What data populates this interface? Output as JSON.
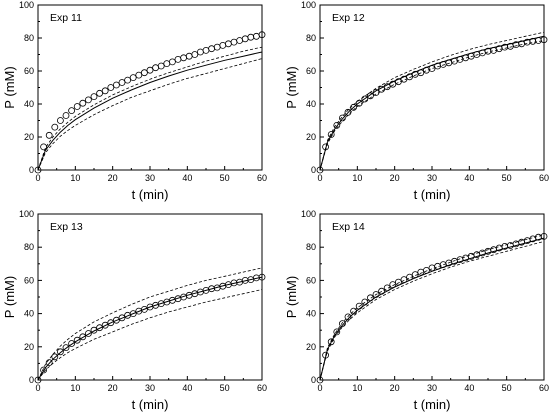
{
  "chart_data": [
    {
      "type": "scatter",
      "panel_label": "Exp 11",
      "xlabel": "t (min)",
      "ylabel": "P (mM)",
      "xlim": [
        0,
        60
      ],
      "ylim": [
        0,
        100
      ],
      "xticks": [
        0,
        10,
        20,
        30,
        40,
        50,
        60
      ],
      "yticks": [
        0,
        20,
        40,
        60,
        80,
        100
      ],
      "observed": {
        "x": [
          0,
          1.5,
          3,
          4.5,
          6,
          7.5,
          9,
          10.5,
          12,
          13.5,
          15,
          16.5,
          18,
          19.5,
          21,
          22.5,
          24,
          25.5,
          27,
          28.5,
          30,
          31.5,
          33,
          34.5,
          36,
          37.5,
          39,
          40.5,
          42,
          43.5,
          45,
          46.5,
          48,
          49.5,
          51,
          52.5,
          54,
          55.5,
          57,
          58.5,
          60
        ],
        "y": [
          0,
          14,
          21,
          26,
          30,
          33,
          36,
          38.5,
          40.5,
          42.5,
          44.5,
          46.5,
          48,
          50,
          51.5,
          53,
          54.5,
          56,
          57.5,
          59,
          60.5,
          62,
          63,
          64.5,
          65.5,
          67,
          68,
          69,
          70,
          71.5,
          72.5,
          73.5,
          74.5,
          75.5,
          76.5,
          77.5,
          78.5,
          79.5,
          80.5,
          81,
          82
        ]
      },
      "fit": {
        "x": [
          0,
          2,
          4,
          6,
          8,
          10,
          15,
          20,
          25,
          30,
          35,
          40,
          45,
          50,
          55,
          60
        ],
        "y": [
          0,
          12,
          18,
          23,
          27,
          30.5,
          37.5,
          43.5,
          48.5,
          53,
          57,
          60.5,
          63.5,
          66.5,
          69,
          71.5
        ]
      },
      "band_upper": {
        "x": [
          0,
          2,
          4,
          6,
          8,
          10,
          15,
          20,
          25,
          30,
          35,
          40,
          45,
          50,
          55,
          60
        ],
        "y": [
          0,
          13.5,
          20,
          25,
          29,
          32.5,
          39.5,
          45.5,
          50.5,
          55,
          59,
          62.5,
          66,
          69,
          72,
          74.5
        ]
      },
      "band_lower": {
        "x": [
          0,
          2,
          4,
          6,
          8,
          10,
          15,
          20,
          25,
          30,
          35,
          40,
          45,
          50,
          55,
          60
        ],
        "y": [
          0,
          10.5,
          16,
          20.5,
          24,
          27,
          33.5,
          39,
          44,
          48,
          52,
          55.5,
          58.5,
          61.5,
          64.5,
          67.5
        ]
      }
    },
    {
      "type": "scatter",
      "panel_label": "Exp 12",
      "xlabel": "t (min)",
      "ylabel": "P (mM)",
      "xlim": [
        0,
        60
      ],
      "ylim": [
        0,
        100
      ],
      "xticks": [
        0,
        10,
        20,
        30,
        40,
        50,
        60
      ],
      "yticks": [
        0,
        20,
        40,
        60,
        80,
        100
      ],
      "observed": {
        "x": [
          0,
          1.5,
          3,
          4.5,
          6,
          7.5,
          9,
          10.5,
          12,
          13.5,
          15,
          16.5,
          18,
          19.5,
          21,
          22.5,
          24,
          25.5,
          27,
          28.5,
          30,
          31.5,
          33,
          34.5,
          36,
          37.5,
          39,
          40.5,
          42,
          43.5,
          45,
          46.5,
          48,
          49.5,
          51,
          52.5,
          54,
          55.5,
          57,
          58.5,
          60
        ],
        "y": [
          0,
          14,
          21.5,
          27,
          31.5,
          35,
          38,
          40.5,
          43,
          45,
          47,
          49,
          50.5,
          52,
          53.5,
          55,
          56.5,
          58,
          59,
          60.5,
          61.5,
          63,
          64,
          65,
          66,
          67,
          68,
          69,
          70,
          71,
          72,
          72.5,
          73.5,
          74.5,
          75,
          76,
          76.5,
          77.5,
          78,
          78.5,
          79
        ]
      },
      "fit": {
        "x": [
          0,
          2,
          4,
          6,
          8,
          10,
          15,
          20,
          25,
          30,
          35,
          40,
          45,
          50,
          55,
          60
        ],
        "y": [
          0,
          17,
          25,
          31,
          36,
          40,
          48,
          54,
          59,
          63.5,
          67,
          70.5,
          73.5,
          76,
          78.5,
          81
        ]
      },
      "band_upper": {
        "x": [
          0,
          2,
          4,
          6,
          8,
          10,
          15,
          20,
          25,
          30,
          35,
          40,
          45,
          50,
          55,
          60
        ],
        "y": [
          0,
          18,
          26.5,
          32.5,
          37.5,
          41.5,
          49.5,
          56,
          61,
          65.5,
          69.5,
          73,
          76,
          78.5,
          81,
          83.5
        ]
      },
      "band_lower": {
        "x": [
          0,
          2,
          4,
          6,
          8,
          10,
          15,
          20,
          25,
          30,
          35,
          40,
          45,
          50,
          55,
          60
        ],
        "y": [
          0,
          16,
          24,
          29.5,
          34.5,
          38.5,
          46,
          52,
          57,
          61.5,
          65,
          68.5,
          71.5,
          74,
          76.5,
          78.5
        ]
      }
    },
    {
      "type": "scatter",
      "panel_label": "Exp 13",
      "xlabel": "t (min)",
      "ylabel": "P (mM)",
      "xlim": [
        0,
        60
      ],
      "ylim": [
        0,
        100
      ],
      "xticks": [
        0,
        10,
        20,
        30,
        40,
        50,
        60
      ],
      "yticks": [
        0,
        20,
        40,
        60,
        80,
        100
      ],
      "observed": {
        "x": [
          0,
          1.5,
          3,
          4.5,
          6,
          7.5,
          9,
          10.5,
          12,
          13.5,
          15,
          16.5,
          18,
          19.5,
          21,
          22.5,
          24,
          25.5,
          27,
          28.5,
          30,
          31.5,
          33,
          34.5,
          36,
          37.5,
          39,
          40.5,
          42,
          43.5,
          45,
          46.5,
          48,
          49.5,
          51,
          52.5,
          54,
          55.5,
          57,
          58.5,
          60
        ],
        "y": [
          0,
          6,
          10.5,
          14,
          17,
          19.5,
          22,
          24,
          26,
          28,
          30,
          31.5,
          33,
          34.5,
          36,
          37.5,
          39,
          40,
          41.5,
          42.5,
          44,
          45,
          46,
          47,
          48,
          49,
          50,
          51,
          52,
          53,
          54,
          55,
          55.5,
          56.5,
          57.5,
          58.5,
          59,
          60,
          60.5,
          61.5,
          62
        ]
      },
      "fit": {
        "x": [
          0,
          2,
          4,
          6,
          8,
          10,
          15,
          20,
          25,
          30,
          35,
          40,
          45,
          50,
          55,
          60
        ],
        "y": [
          0,
          7.5,
          12.5,
          16.5,
          20,
          23,
          29.5,
          35,
          39.5,
          44,
          47.5,
          51,
          54,
          57,
          59.5,
          62
        ]
      },
      "band_upper": {
        "x": [
          0,
          2,
          4,
          6,
          8,
          10,
          15,
          20,
          25,
          30,
          35,
          40,
          45,
          50,
          55,
          60
        ],
        "y": [
          0,
          9.5,
          15.5,
          20.5,
          24.5,
          28,
          35,
          40.5,
          45.5,
          50,
          53.5,
          57,
          60,
          62.5,
          65,
          67.5
        ]
      },
      "band_lower": {
        "x": [
          0,
          2,
          4,
          6,
          8,
          10,
          15,
          20,
          25,
          30,
          35,
          40,
          45,
          50,
          55,
          60
        ],
        "y": [
          0,
          6,
          10,
          13.5,
          16.5,
          19,
          24.5,
          29,
          33.5,
          37.5,
          41,
          44,
          47,
          49.5,
          52,
          54.5
        ]
      }
    },
    {
      "type": "scatter",
      "panel_label": "Exp 14",
      "xlabel": "t (min)",
      "ylabel": "P (mM)",
      "xlim": [
        0,
        60
      ],
      "ylim": [
        0,
        100
      ],
      "xticks": [
        0,
        10,
        20,
        30,
        40,
        50,
        60
      ],
      "yticks": [
        0,
        20,
        40,
        60,
        80,
        100
      ],
      "observed": {
        "x": [
          0,
          1.5,
          3,
          4.5,
          6,
          7.5,
          9,
          10.5,
          12,
          13.5,
          15,
          16.5,
          18,
          19.5,
          21,
          22.5,
          24,
          25.5,
          27,
          28.5,
          30,
          31.5,
          33,
          34.5,
          36,
          37.5,
          39,
          40.5,
          42,
          43.5,
          45,
          46.5,
          48,
          49.5,
          51,
          52.5,
          54,
          55.5,
          57,
          58.5,
          60
        ],
        "y": [
          0,
          15,
          23,
          29,
          34,
          38,
          41.5,
          44.5,
          47,
          49.5,
          51.5,
          53.5,
          55.5,
          57.5,
          59,
          60.5,
          62,
          63.5,
          65,
          66,
          67.5,
          68.5,
          69.5,
          70.5,
          71.5,
          72.5,
          73.5,
          74.5,
          75.5,
          76.5,
          77.5,
          78.5,
          79.5,
          80.5,
          81,
          82,
          83,
          84,
          85,
          86,
          86.5
        ]
      },
      "fit": {
        "x": [
          0,
          2,
          4,
          6,
          8,
          10,
          15,
          20,
          25,
          30,
          35,
          40,
          45,
          50,
          55,
          60
        ],
        "y": [
          0,
          18.5,
          27,
          33,
          38,
          42,
          50,
          56,
          61,
          65.5,
          69.5,
          73,
          76.5,
          79.5,
          82.5,
          85.5
        ]
      },
      "band_upper": {
        "x": [
          0,
          2,
          4,
          6,
          8,
          10,
          15,
          20,
          25,
          30,
          35,
          40,
          45,
          50,
          55,
          60
        ],
        "y": [
          0,
          19.5,
          28,
          34.5,
          39.5,
          43.5,
          51.5,
          57.5,
          62.5,
          67,
          71,
          75,
          78.5,
          81.5,
          84.5,
          87.5
        ]
      },
      "band_lower": {
        "x": [
          0,
          2,
          4,
          6,
          8,
          10,
          15,
          20,
          25,
          30,
          35,
          40,
          45,
          50,
          55,
          60
        ],
        "y": [
          0,
          17.5,
          26,
          32,
          36.5,
          40.5,
          48.5,
          54.5,
          59.5,
          64,
          68,
          71.5,
          74.5,
          77.5,
          80.5,
          83.5
        ]
      }
    }
  ]
}
